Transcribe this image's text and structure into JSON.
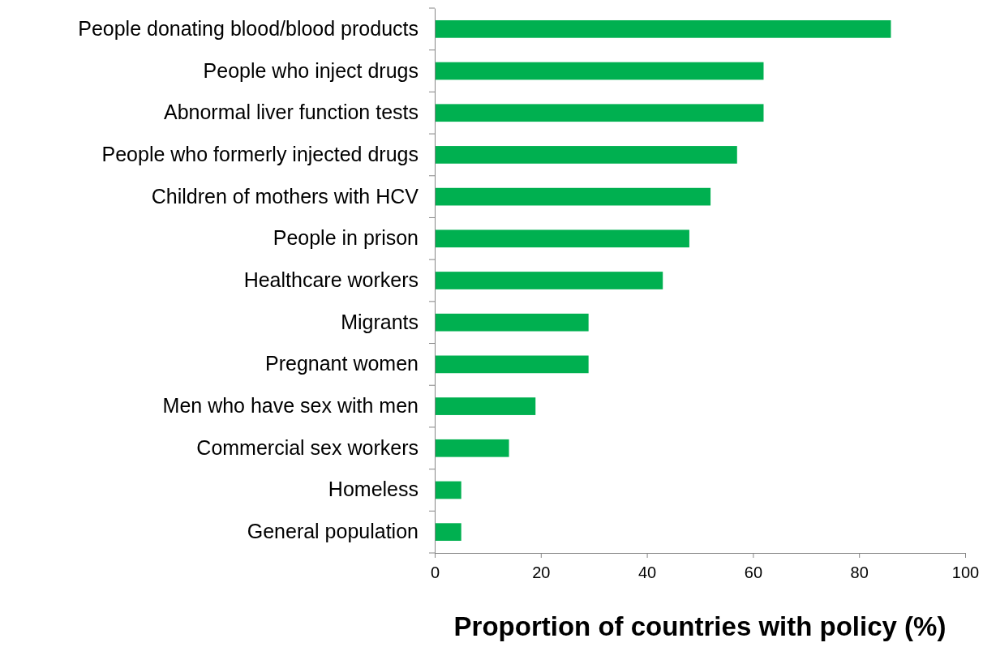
{
  "chart_data": {
    "type": "bar",
    "orientation": "horizontal",
    "xlabel": "Proportion of countries with policy (%)",
    "categories": [
      "People donating blood/blood products",
      "People who inject drugs",
      "Abnormal liver function tests",
      "People who formerly injected drugs",
      "Children of mothers with HCV",
      "People in prison",
      "Healthcare workers",
      "Migrants",
      "Pregnant women",
      "Men who have sex with men",
      "Commercial sex workers",
      "Homeless",
      "General population"
    ],
    "values": [
      86,
      62,
      62,
      57,
      52,
      48,
      43,
      29,
      29,
      19,
      14,
      5,
      5
    ],
    "color": "#00b050",
    "xlim": [
      0,
      100
    ],
    "xticks": [
      0,
      20,
      40,
      60,
      80,
      100
    ],
    "grid": false
  }
}
